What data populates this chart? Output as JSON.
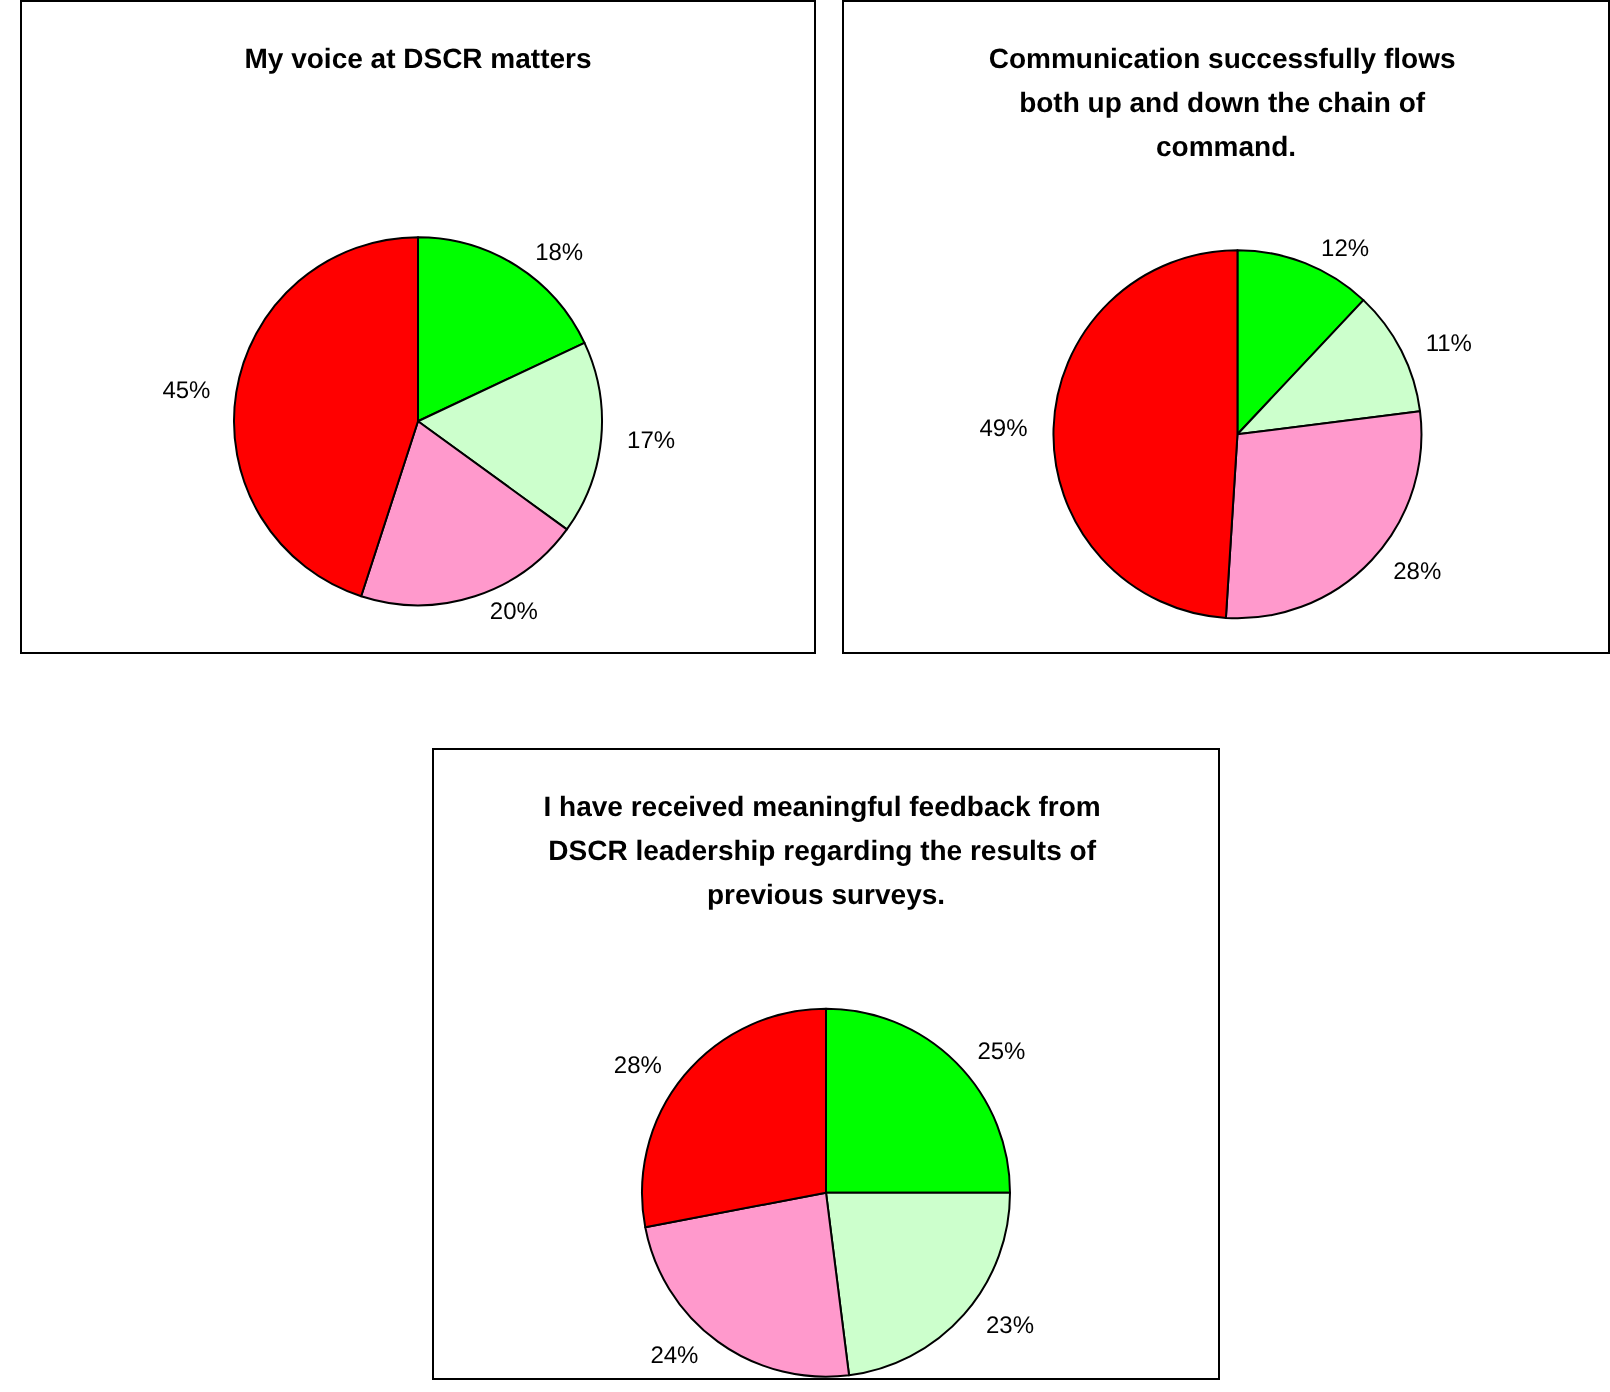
{
  "chart_data": [
    {
      "type": "pie",
      "title": "My voice at DSCR matters",
      "categories": [
        null,
        null,
        null,
        null
      ],
      "values": [
        18,
        17,
        20,
        45
      ],
      "colors": [
        "#00ff00",
        "#ccffcc",
        "#ff99cc",
        "#ff0000"
      ],
      "value_labels": [
        "18%",
        "17%",
        "20%",
        "45%"
      ]
    },
    {
      "type": "pie",
      "title": "Communication successfully flows both up and down the chain of command.",
      "categories": [
        null,
        null,
        null,
        null
      ],
      "values": [
        12,
        11,
        28,
        49
      ],
      "colors": [
        "#00ff00",
        "#ccffcc",
        "#ff99cc",
        "#ff0000"
      ],
      "value_labels": [
        "12%",
        "11%",
        "28%",
        "49%"
      ]
    },
    {
      "type": "pie",
      "title": "I have received meaningful feedback from DSCR leadership regarding the results of previous surveys.",
      "categories": [
        null,
        null,
        null,
        null
      ],
      "values": [
        25,
        23,
        24,
        28
      ],
      "colors": [
        "#00ff00",
        "#ccffcc",
        "#ff99cc",
        "#ff0000"
      ],
      "value_labels": [
        "25%",
        "23%",
        "24%",
        "28%"
      ]
    }
  ]
}
